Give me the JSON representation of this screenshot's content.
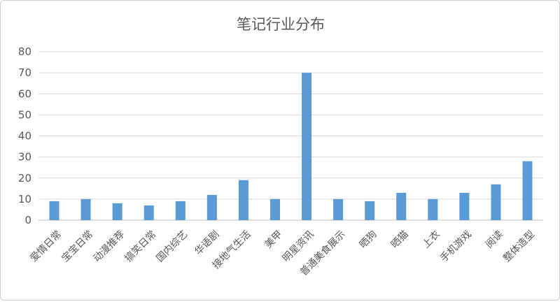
{
  "chart_data": {
    "type": "bar",
    "title": "笔记行业分布",
    "xlabel": "",
    "ylabel": "",
    "ylim": [
      0,
      80
    ],
    "yticks": [
      0,
      10,
      20,
      30,
      40,
      50,
      60,
      70,
      80
    ],
    "grid": true,
    "legend": "none",
    "bar_color": "#5b9bd5",
    "categories": [
      "爱情日常",
      "宝宝日常",
      "动漫推荐",
      "搞笑日常",
      "国内综艺",
      "华语剧",
      "接地气生活",
      "美甲",
      "明星资讯",
      "普通美食展示",
      "晒狗",
      "晒猫",
      "上衣",
      "手机游戏",
      "阅读",
      "整体造型"
    ],
    "values": [
      9,
      10,
      8,
      7,
      9,
      12,
      19,
      10,
      70,
      10,
      9,
      13,
      10,
      13,
      17,
      28
    ]
  }
}
